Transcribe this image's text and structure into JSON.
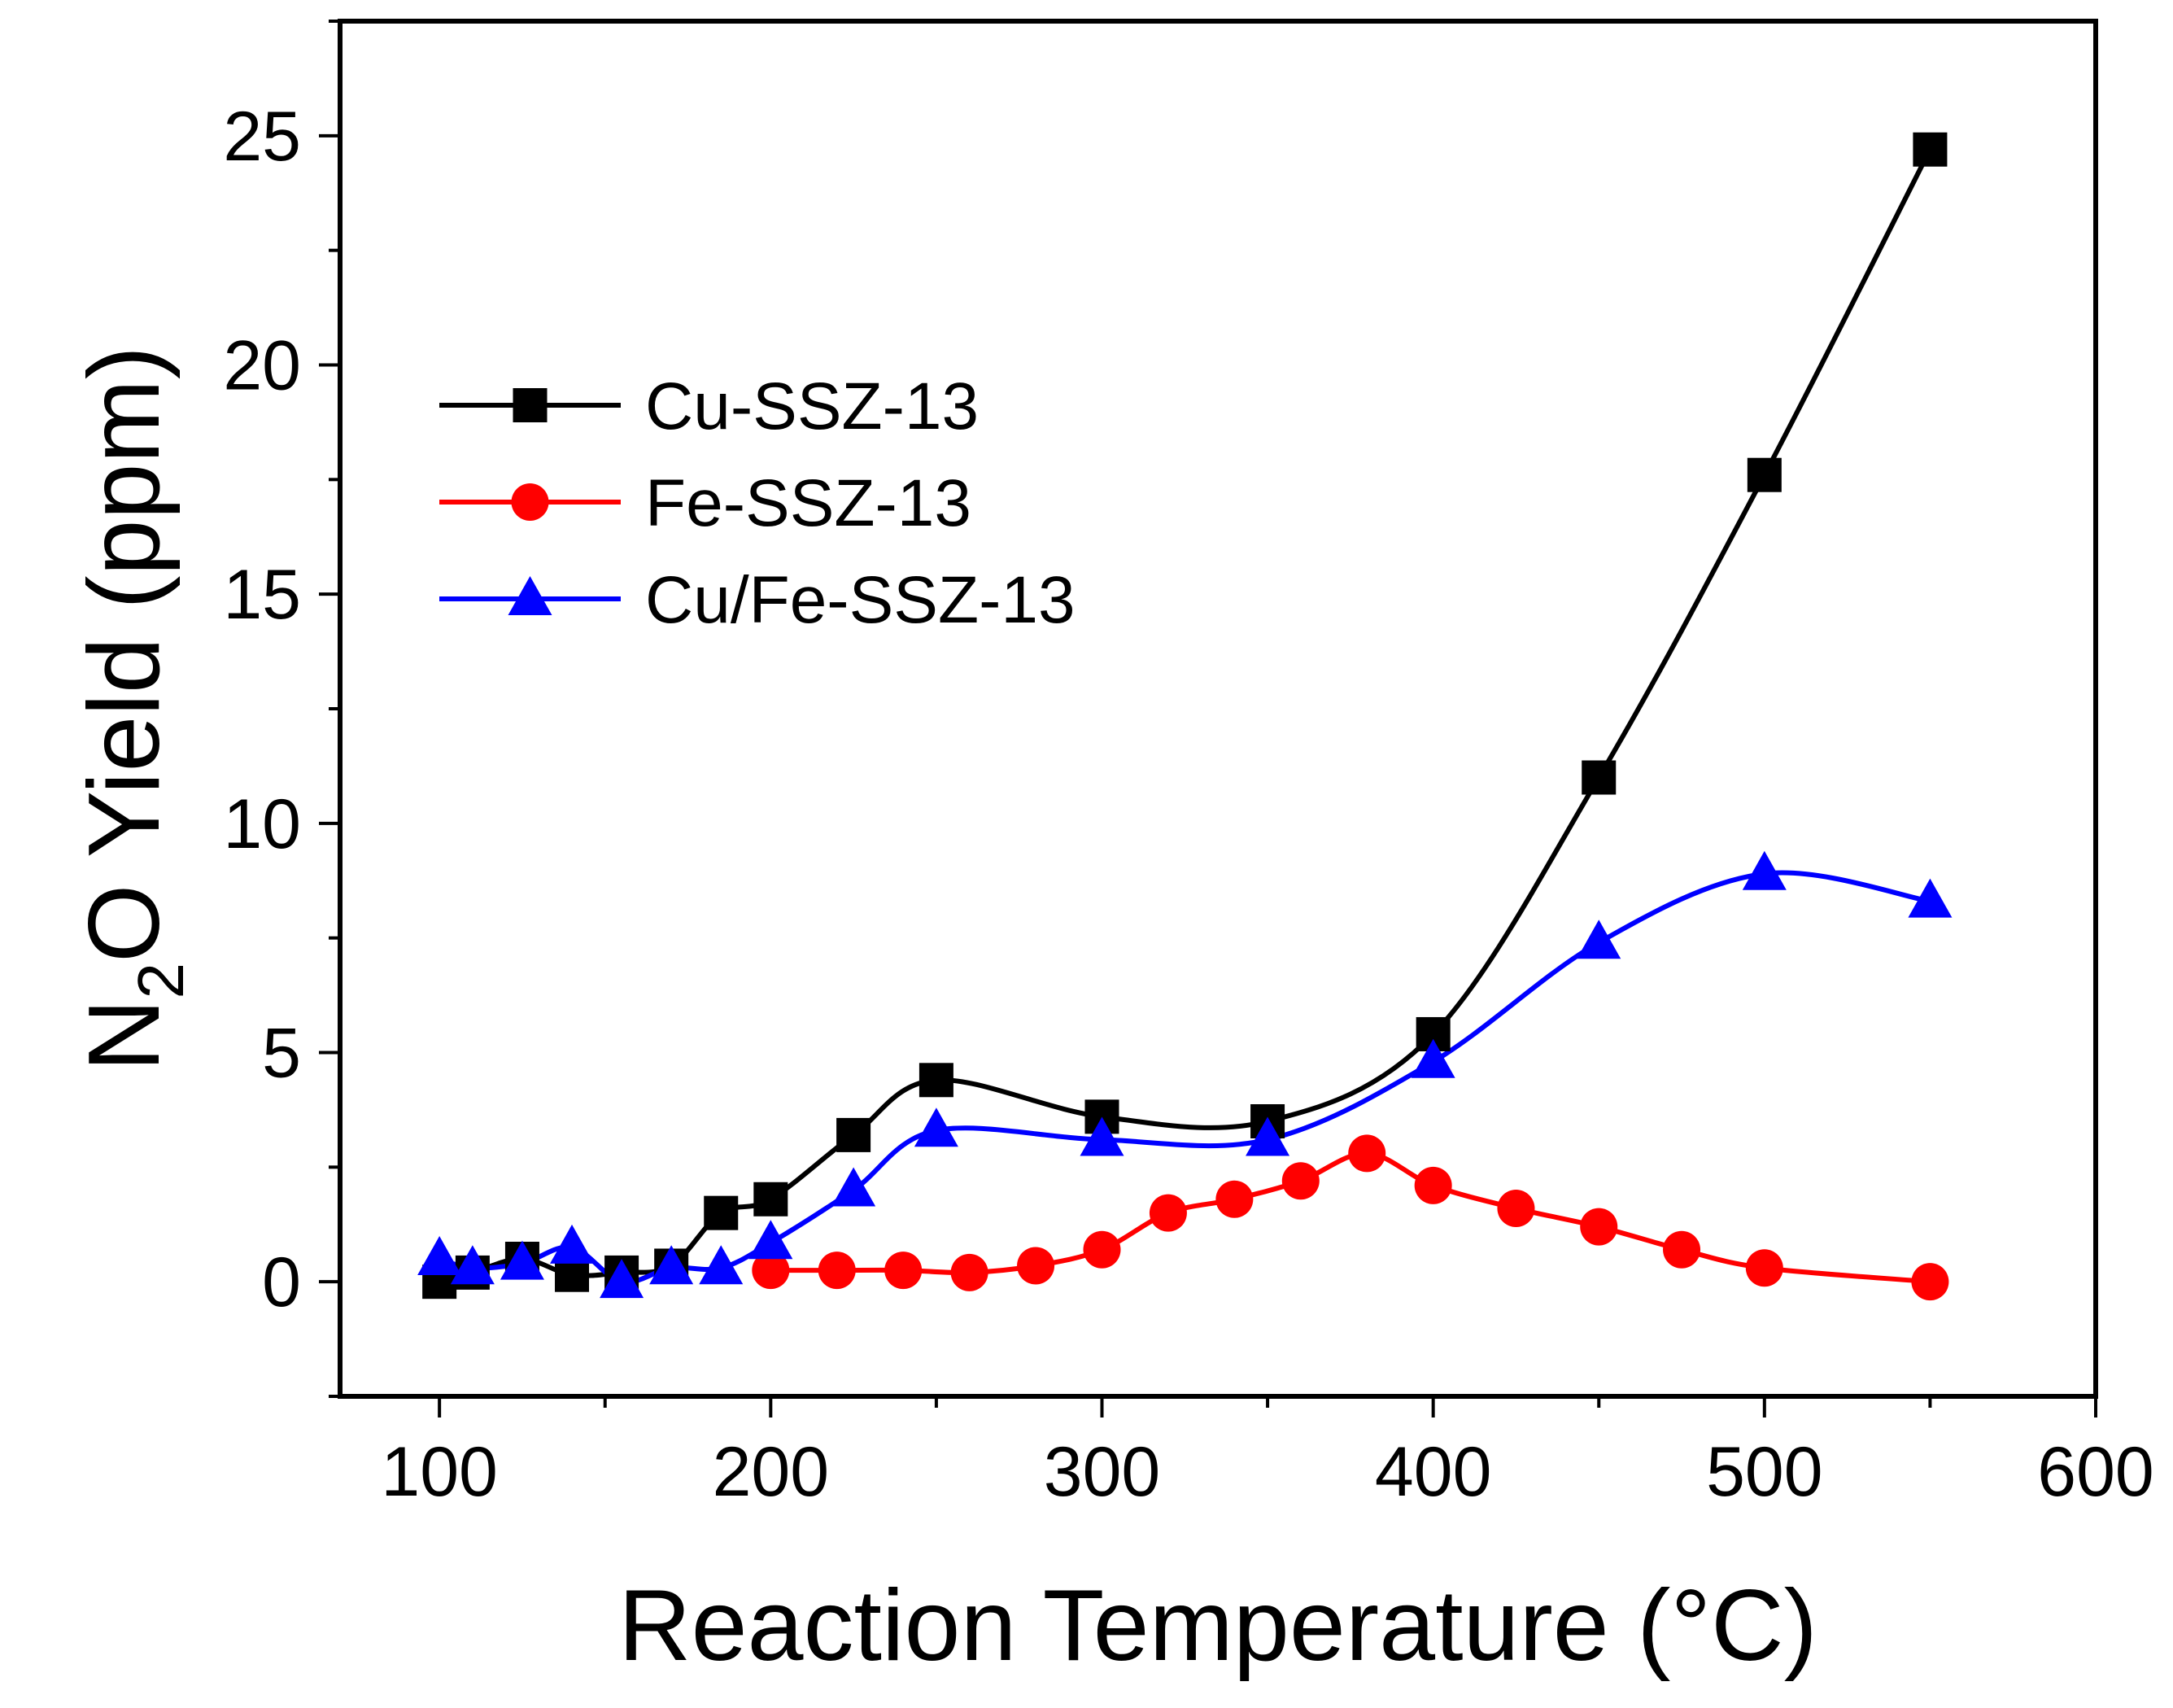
{
  "chart_data": {
    "type": "line",
    "title": "",
    "xlabel": "Reaction Temperature (°C)",
    "ylabel": {
      "part1": "N",
      "subscript": "2",
      "part2": "O Yield (ppm)"
    },
    "xlim": [
      70,
      600
    ],
    "ylim": [
      -2.5,
      27.5
    ],
    "xticks": [
      100,
      200,
      300,
      400,
      500,
      600
    ],
    "yticks": [
      0,
      5,
      10,
      15,
      20,
      25
    ],
    "xminor_step": 50,
    "yminor_step": 2.5,
    "legend_position": "upper-left",
    "series": [
      {
        "name": "Cu-SSZ-13",
        "color": "#000000",
        "marker": "square",
        "x": [
          100,
          110,
          125,
          140,
          155,
          170,
          185,
          200,
          225,
          250,
          300,
          350,
          400,
          450,
          500,
          550
        ],
        "y": [
          0.0,
          0.2,
          0.5,
          0.15,
          0.2,
          0.35,
          1.5,
          1.8,
          3.2,
          4.4,
          3.6,
          3.5,
          5.4,
          11.0,
          17.6,
          24.7
        ]
      },
      {
        "name": "Fe-SSZ-13",
        "color": "#ff0000",
        "marker": "circle",
        "x": [
          200,
          220,
          240,
          260,
          280,
          300,
          320,
          340,
          360,
          380,
          400,
          425,
          450,
          475,
          500,
          550
        ],
        "y": [
          0.25,
          0.25,
          0.25,
          0.2,
          0.35,
          0.7,
          1.5,
          1.8,
          2.2,
          2.8,
          2.1,
          1.6,
          1.2,
          0.7,
          0.3,
          0.0
        ]
      },
      {
        "name": "Cu/Fe-SSZ-13",
        "color": "#0000ff",
        "marker": "triangle",
        "x": [
          100,
          110,
          125,
          140,
          155,
          170,
          185,
          200,
          225,
          250,
          300,
          350,
          400,
          450,
          500,
          550
        ],
        "y": [
          0.5,
          0.3,
          0.4,
          0.75,
          0.0,
          0.3,
          0.3,
          0.85,
          2.0,
          3.3,
          3.1,
          3.1,
          4.8,
          7.4,
          8.9,
          8.3
        ]
      }
    ]
  }
}
